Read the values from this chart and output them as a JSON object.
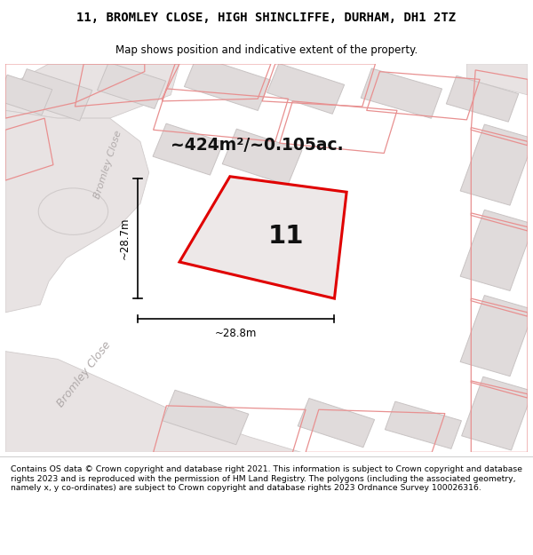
{
  "title": "11, BROMLEY CLOSE, HIGH SHINCLIFFE, DURHAM, DH1 2TZ",
  "subtitle": "Map shows position and indicative extent of the property.",
  "area_text": "~424m²/~0.105ac.",
  "label_number": "11",
  "dim_width": "~28.8m",
  "dim_height": "~28.7m",
  "street_label_upper": "Bromley Close",
  "street_label_lower": "Bromley Close",
  "footer": "Contains OS data © Crown copyright and database right 2021. This information is subject to Crown copyright and database rights 2023 and is reproduced with the permission of HM Land Registry. The polygons (including the associated geometry, namely x, y co-ordinates) are subject to Crown copyright and database rights 2023 Ordnance Survey 100026316.",
  "map_bg": "#f2eeee",
  "road_color": "#e8e3e3",
  "road_edge": "#d0cbcb",
  "building_fill": "#e0dbdb",
  "building_edge": "#c8c3c3",
  "pink_edge": "#e89090",
  "red_color": "#e00000",
  "property_fill": "#ede8e8",
  "text_gray": "#b0aaaa",
  "white": "#ffffff"
}
